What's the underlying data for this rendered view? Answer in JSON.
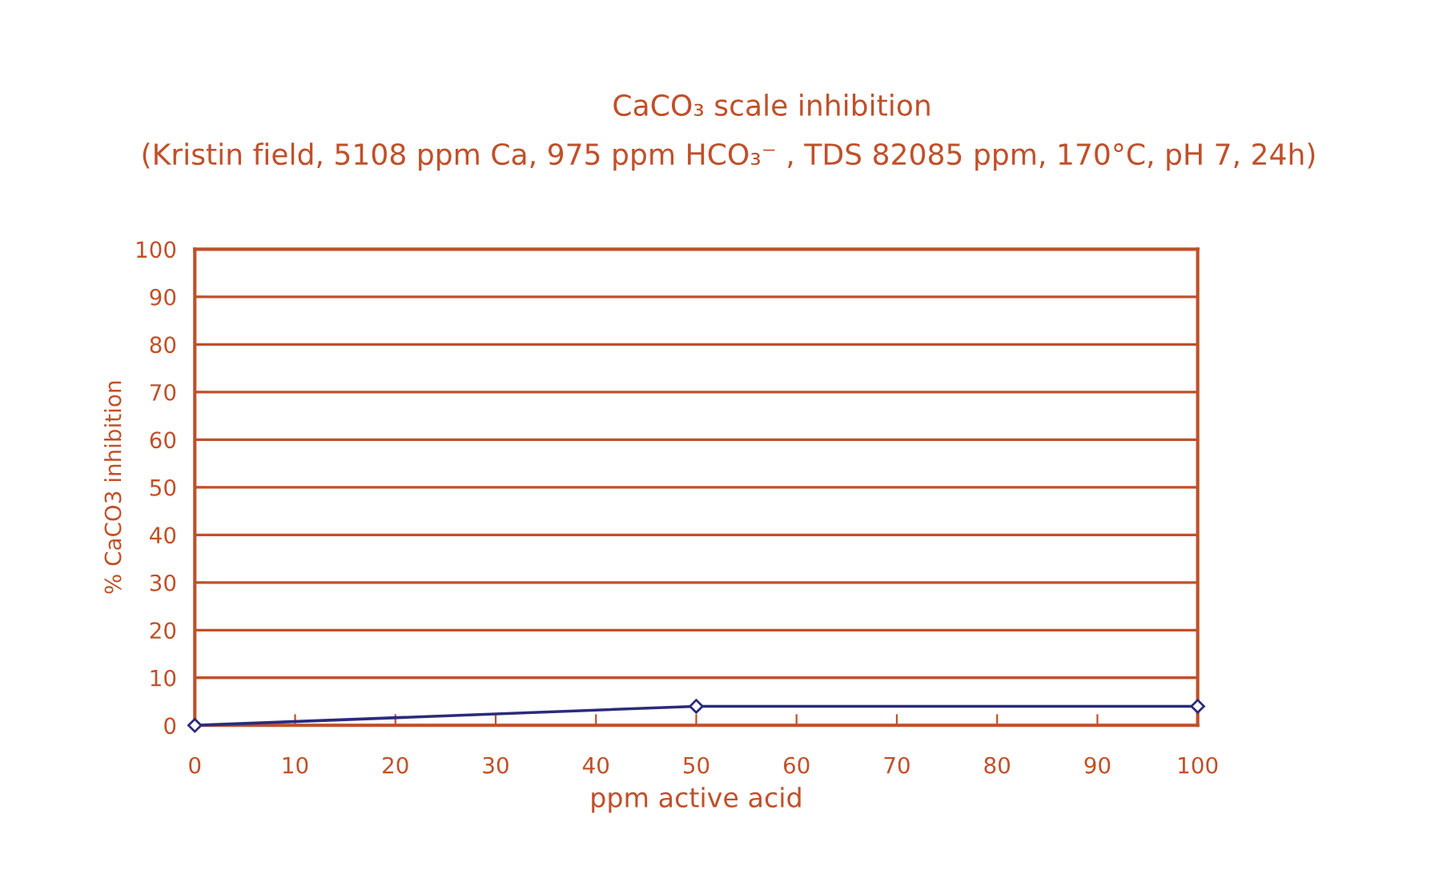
{
  "chart_data": {
    "type": "line",
    "title": "CaCO₃ scale inhibition",
    "subtitle": "(Kristin field, 5108 ppm Ca, 975 ppm HCO₃⁻ , TDS 82085 ppm, 170°C, pH 7, 24h)",
    "xlabel": "ppm active acid",
    "ylabel": "% CaCO3 inhibition",
    "x": [
      0,
      50,
      100
    ],
    "series": [
      {
        "color": "#2b2b7c",
        "values": [
          0,
          4,
          4
        ]
      }
    ],
    "xlim": [
      0,
      100
    ],
    "xticks": [
      0,
      10,
      20,
      30,
      40,
      50,
      60,
      70,
      80,
      90,
      100
    ],
    "ylim": [
      0,
      100
    ],
    "yticks": [
      0,
      10,
      20,
      30,
      40,
      50,
      60,
      70,
      80,
      90,
      100
    ],
    "grid": "y",
    "marker": "diamond",
    "line_style": "solid"
  }
}
